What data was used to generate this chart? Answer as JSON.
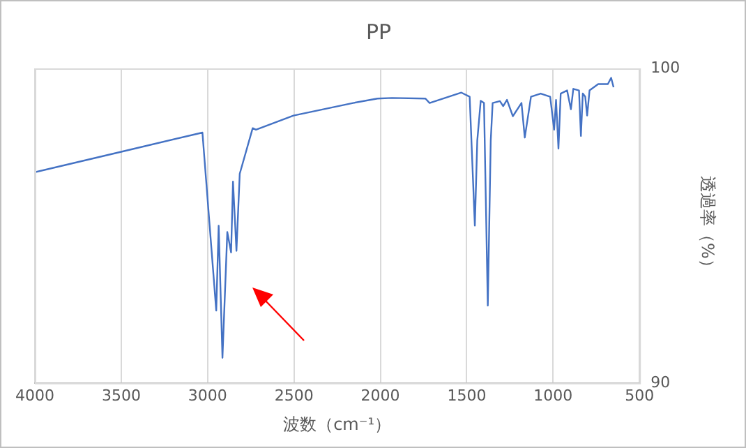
{
  "chart_data": {
    "type": "line",
    "title": "PP",
    "xlabel": "波数（cm⁻¹）",
    "ylabel": "透過率（%）",
    "x": [
      4000,
      3500,
      3030,
      2950,
      2936,
      2914,
      2886,
      2864,
      2853,
      2833,
      2814,
      2739,
      2720,
      2503,
      2158,
      2017,
      1933,
      1739,
      1715,
      1531,
      1483,
      1453,
      1439,
      1419,
      1400,
      1378,
      1361,
      1350,
      1308,
      1289,
      1267,
      1233,
      1183,
      1164,
      1128,
      1072,
      1017,
      994,
      983,
      969,
      956,
      919,
      897,
      883,
      850,
      839,
      828,
      814,
      803,
      789,
      739,
      683,
      664,
      650
    ],
    "series": [
      {
        "color": "#4472c4",
        "values": [
          96.7,
          97.35,
          97.96,
          92.3,
          95.0,
          90.8,
          94.8,
          94.15,
          96.4,
          94.2,
          96.65,
          98.1,
          98.05,
          98.5,
          98.9,
          99.04,
          99.06,
          99.04,
          98.9,
          99.23,
          99.1,
          95.0,
          97.7,
          98.97,
          98.9,
          92.46,
          97.7,
          98.9,
          98.96,
          98.8,
          99.0,
          98.48,
          98.9,
          97.8,
          99.1,
          99.2,
          99.1,
          98.05,
          99.0,
          97.45,
          99.2,
          99.3,
          98.7,
          99.35,
          99.3,
          97.85,
          99.2,
          99.1,
          98.5,
          99.3,
          99.5,
          99.5,
          99.7,
          99.4
        ]
      }
    ],
    "xlim": [
      4000,
      500
    ],
    "xticks": [
      4000,
      3500,
      3000,
      2500,
      2000,
      1500,
      1000,
      500
    ],
    "ylim": [
      90,
      100
    ],
    "yticks": [
      90,
      100
    ],
    "grid": "x",
    "marker": "none",
    "line_style": "solid",
    "legend": false
  }
}
